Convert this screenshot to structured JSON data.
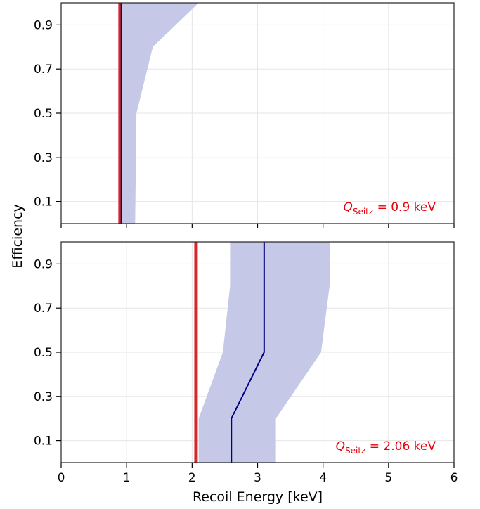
{
  "chart_data": {
    "type": "line",
    "xlabel": "Recoil Energy [keV]",
    "ylabel": "Efficiency",
    "xlim": [
      0,
      6
    ],
    "ylim": [
      0,
      1
    ],
    "xticks": [
      "0",
      "1",
      "2",
      "3",
      "4",
      "5",
      "6"
    ],
    "yticks": [
      "0.1",
      "0.3",
      "0.5",
      "0.7",
      "0.9"
    ],
    "grid": true,
    "colors": {
      "threshold": "#d62728",
      "median": "#000080",
      "band": "#c5c8e6"
    },
    "panels": [
      {
        "annotation_symbol": "Q",
        "annotation_sub": "Seitz",
        "annotation_value": " = 0.9 keV",
        "threshold_keV": 0.9,
        "median": [
          [
            0.92,
            0.0
          ],
          [
            0.92,
            1.0
          ]
        ],
        "band_upper": [
          [
            1.13,
            0.0
          ],
          [
            1.15,
            0.5
          ],
          [
            1.4,
            0.8
          ],
          [
            2.1,
            1.0
          ]
        ],
        "band_lower": [
          [
            0.9,
            0.0
          ],
          [
            0.9,
            1.0
          ]
        ]
      },
      {
        "annotation_symbol": "Q",
        "annotation_sub": "Seitz",
        "annotation_value": " = 2.06 keV",
        "threshold_keV": 2.06,
        "median": [
          [
            2.6,
            0.0
          ],
          [
            2.6,
            0.2
          ],
          [
            3.1,
            0.5
          ],
          [
            3.1,
            1.0
          ]
        ],
        "band_upper": [
          [
            3.28,
            0.0
          ],
          [
            3.28,
            0.2
          ],
          [
            3.97,
            0.5
          ],
          [
            4.1,
            0.8
          ],
          [
            4.1,
            1.0
          ]
        ],
        "band_lower": [
          [
            2.1,
            0.0
          ],
          [
            2.1,
            0.2
          ],
          [
            2.47,
            0.5
          ],
          [
            2.58,
            0.8
          ],
          [
            2.58,
            1.0
          ]
        ]
      }
    ]
  }
}
